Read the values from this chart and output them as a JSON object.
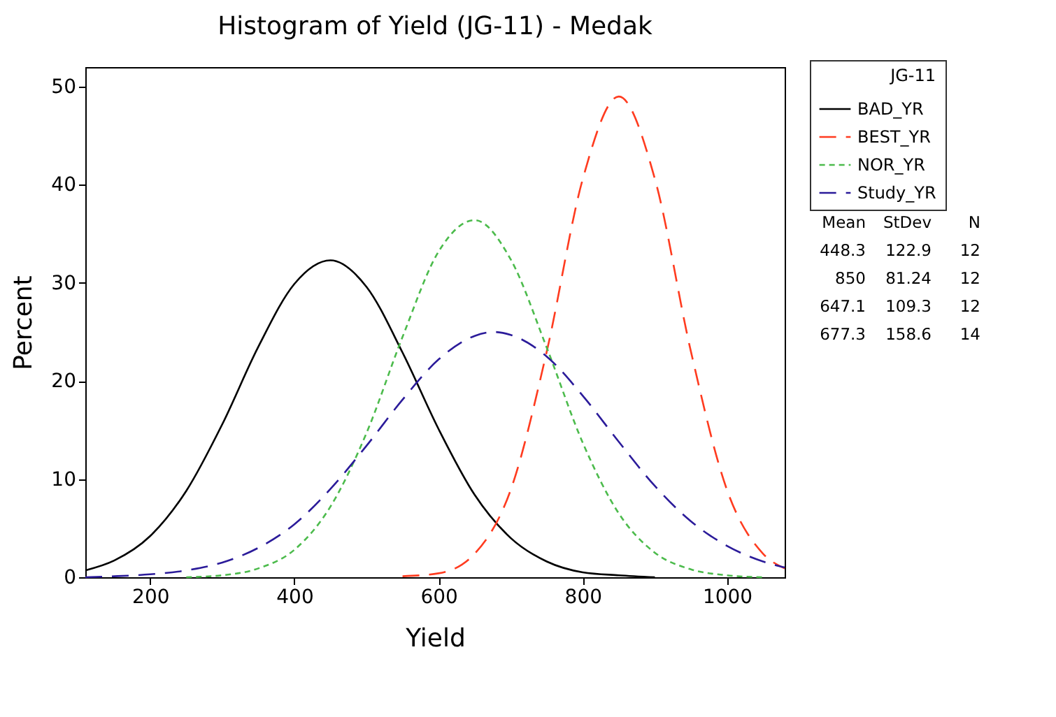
{
  "chart_data": {
    "type": "line",
    "title": "Histogram of Yield (JG-11) - Medak",
    "xlabel": "Yield",
    "ylabel": "Percent",
    "legend_title": "JG-11",
    "legend": "right",
    "grid": false,
    "marker": "none",
    "xlim": [
      110,
      1080
    ],
    "ylim": [
      0,
      52
    ],
    "xticks": [
      200,
      400,
      600,
      800,
      1000
    ],
    "yticks": [
      0,
      10,
      20,
      30,
      40,
      50
    ],
    "series": [
      {
        "name": "BAD_YR",
        "color": "#000000",
        "line_style": "solid",
        "x": [
          110,
          150,
          200,
          250,
          300,
          350,
          400,
          450,
          500,
          550,
          600,
          650,
          700,
          750,
          800,
          850,
          900
        ],
        "values": [
          0.7,
          1.7,
          4.2,
          8.8,
          15.6,
          23.5,
          29.9,
          32.3,
          29.6,
          22.9,
          15.1,
          8.4,
          4.0,
          1.6,
          0.5,
          0.2,
          0.0
        ]
      },
      {
        "name": "BEST_YR",
        "color": "#ff3b1f",
        "line_style": "dashed",
        "x": [
          550,
          600,
          650,
          700,
          750,
          800,
          850,
          900,
          950,
          1000,
          1050,
          1080
        ],
        "values": [
          0.1,
          0.4,
          2.4,
          8.9,
          23.0,
          40.6,
          49.0,
          40.6,
          23.0,
          8.9,
          2.4,
          0.9
        ]
      },
      {
        "name": "NOR_YR",
        "color": "#4cbb4c",
        "line_style": "dotted",
        "x": [
          250,
          300,
          350,
          400,
          450,
          500,
          550,
          600,
          650,
          700,
          750,
          800,
          850,
          900,
          950,
          1000,
          1050
        ],
        "values": [
          0.0,
          0.2,
          0.9,
          2.8,
          7.2,
          14.7,
          24.5,
          33.2,
          36.4,
          32.4,
          23.4,
          13.7,
          6.5,
          2.5,
          0.8,
          0.2,
          0.0
        ]
      },
      {
        "name": "Study_YR",
        "color": "#2b1b9a",
        "line_style": "dashed",
        "x": [
          110,
          150,
          200,
          250,
          300,
          350,
          400,
          450,
          500,
          550,
          600,
          650,
          677,
          700,
          750,
          800,
          850,
          900,
          950,
          1000,
          1050,
          1080
        ],
        "values": [
          0.0,
          0.1,
          0.3,
          0.7,
          1.5,
          3.0,
          5.4,
          9.0,
          13.4,
          18.1,
          22.2,
          24.6,
          25.0,
          24.7,
          22.5,
          18.5,
          13.8,
          9.3,
          5.7,
          3.2,
          1.6,
          1.0
        ]
      }
    ],
    "annotations": [
      "Mean StDev N",
      "448.3 122.9 12",
      "850 81.24 12",
      "647.1 109.3 12",
      "677.3 158.6 14"
    ]
  }
}
